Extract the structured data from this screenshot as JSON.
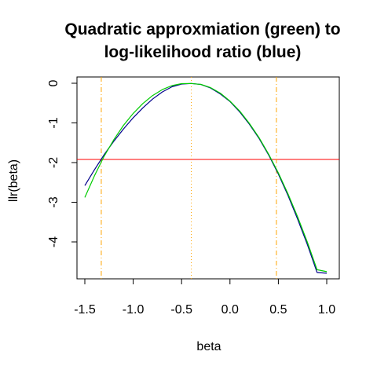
{
  "chart_data": {
    "type": "line",
    "title": [
      "Quadratic approxmiation (green) to",
      "log-likelihood ratio (blue)"
    ],
    "xlabel": "beta",
    "ylabel": "llr(beta)",
    "xlim": [
      -1.5,
      1.0
    ],
    "ylim": [
      -4.8,
      0
    ],
    "x_ticks": [
      -1.5,
      -1.0,
      -0.5,
      0.0,
      0.5,
      1.0
    ],
    "x_tick_labels": [
      "-1.5",
      "-1.0",
      "-0.5",
      "0.0",
      "0.5",
      "1.0"
    ],
    "y_ticks": [
      0,
      -1,
      -2,
      -3,
      -4
    ],
    "y_tick_labels": [
      "0",
      "-1",
      "-2",
      "-3",
      "-4"
    ],
    "series": [
      {
        "color": "#00008b",
        "x": [
          -1.5,
          -1.4,
          -1.3,
          -1.2,
          -1.1,
          -1.0,
          -0.9,
          -0.8,
          -0.7,
          -0.6,
          -0.5,
          -0.4,
          -0.3,
          -0.2,
          -0.1,
          0.0,
          0.1,
          0.2,
          0.3,
          0.4,
          0.5,
          0.6,
          0.7,
          0.8,
          0.9,
          1.0
        ],
        "y": [
          -2.58,
          -2.18,
          -1.8,
          -1.46,
          -1.15,
          -0.87,
          -0.62,
          -0.4,
          -0.22,
          -0.09,
          -0.02,
          -0.005,
          -0.03,
          -0.12,
          -0.27,
          -0.46,
          -0.72,
          -1.03,
          -1.39,
          -1.81,
          -2.29,
          -2.83,
          -3.43,
          -4.07,
          -4.77,
          -4.79
        ]
      },
      {
        "color": "#00cc00",
        "x": [
          -1.5,
          -1.4,
          -1.3,
          -1.2,
          -1.1,
          -1.0,
          -0.9,
          -0.8,
          -0.7,
          -0.6,
          -0.5,
          -0.4,
          -0.3,
          -0.2,
          -0.1,
          0.0,
          0.1,
          0.2,
          0.3,
          0.4,
          0.5,
          0.6,
          0.7,
          0.8,
          0.9,
          1.0
        ],
        "y": [
          -2.88,
          -2.33,
          -1.84,
          -1.42,
          -1.06,
          -0.76,
          -0.51,
          -0.31,
          -0.16,
          -0.06,
          -0.01,
          -0.005,
          -0.03,
          -0.11,
          -0.25,
          -0.45,
          -0.7,
          -1.01,
          -1.37,
          -1.79,
          -2.26,
          -2.79,
          -3.37,
          -4.01,
          -4.7,
          -4.75
        ]
      }
    ],
    "reference_lines": [
      {
        "orientation": "horizontal",
        "value": -1.92,
        "color": "#ff0000",
        "style": "solid"
      },
      {
        "orientation": "vertical",
        "value": -1.33,
        "color": "#ffa500",
        "style": "dashdot"
      },
      {
        "orientation": "vertical",
        "value": -0.4,
        "color": "#ffa500",
        "style": "dotted"
      },
      {
        "orientation": "vertical",
        "value": 0.48,
        "color": "#ffa500",
        "style": "dashdot"
      }
    ],
    "grid": false,
    "legend": "none"
  }
}
